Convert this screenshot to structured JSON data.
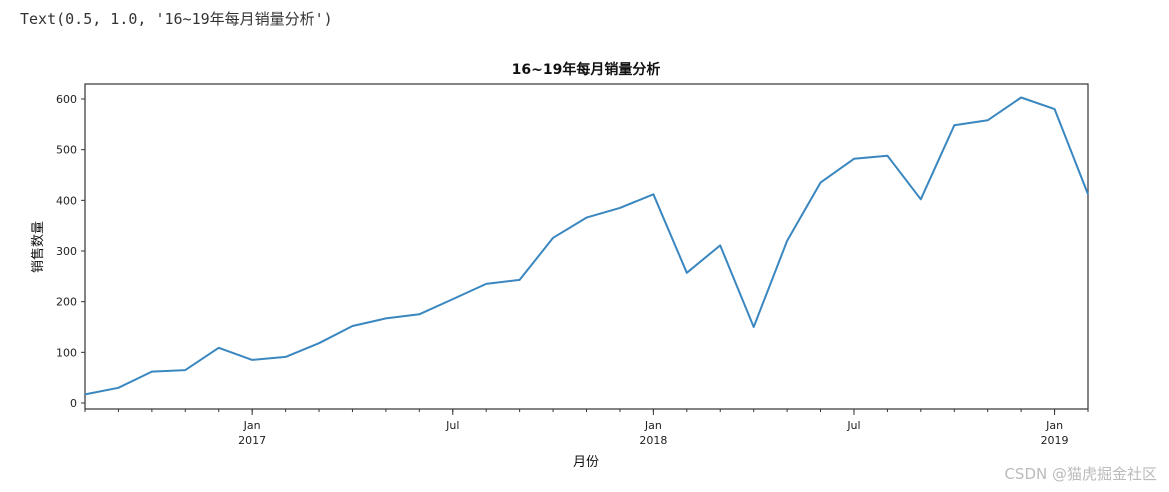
{
  "output": {
    "text": "Text(0.5, 1.0, '16~19年每月销量分析')"
  },
  "watermark": "CSDN @猫虎掘金社区",
  "colors": {
    "line": "#3a87c0",
    "axis": "#333333",
    "background": "#ffffff"
  },
  "chart_data": {
    "type": "line",
    "title": "16~19年每月销量分析",
    "xlabel": "月份",
    "ylabel": "销售数量",
    "ylim": [
      -12,
      630
    ],
    "yticks": [
      0,
      100,
      200,
      300,
      400,
      500,
      600
    ],
    "xtick_labels": [
      {
        "label": "Jan",
        "sub": "2017",
        "month": "2017-01"
      },
      {
        "label": "Jul",
        "sub": "",
        "month": "2017-07"
      },
      {
        "label": "Jan",
        "sub": "2018",
        "month": "2018-01"
      },
      {
        "label": "Jul",
        "sub": "",
        "month": "2018-07"
      },
      {
        "label": "Jan",
        "sub": "2019",
        "month": "2019-01"
      }
    ],
    "grid": false,
    "legend": false,
    "x": [
      "2016-08",
      "2016-09",
      "2016-10",
      "2016-11",
      "2016-12",
      "2017-01",
      "2017-02",
      "2017-03",
      "2017-04",
      "2017-05",
      "2017-06",
      "2017-07",
      "2017-08",
      "2017-09",
      "2017-10",
      "2017-11",
      "2017-12",
      "2018-01",
      "2018-02",
      "2018-03",
      "2018-04",
      "2018-05",
      "2018-06",
      "2018-07",
      "2018-08",
      "2018-09",
      "2018-10",
      "2018-11",
      "2018-12",
      "2019-01",
      "2019-02"
    ],
    "series": [
      {
        "name": "销售数量",
        "values": [
          17,
          30,
          62,
          65,
          109,
          85,
          91,
          118,
          152,
          167,
          175,
          205,
          235,
          243,
          326,
          366,
          385,
          412,
          257,
          311,
          150,
          320,
          435,
          482,
          488,
          402,
          548,
          558,
          603,
          580,
          412
        ]
      }
    ]
  }
}
